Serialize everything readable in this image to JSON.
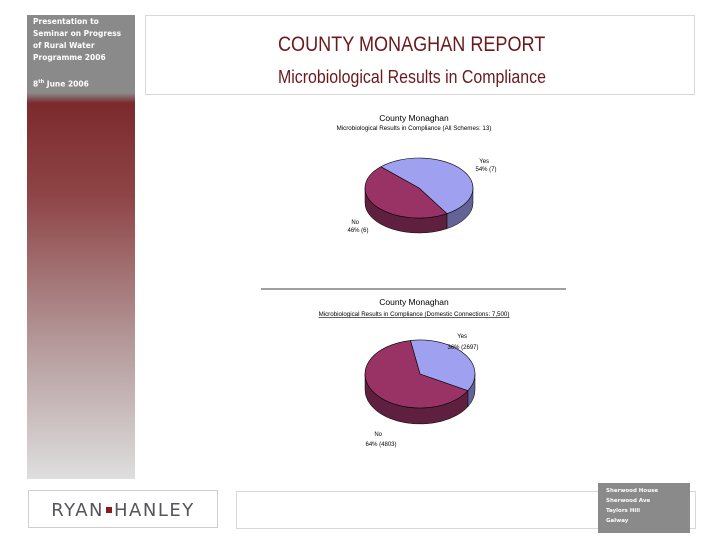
{
  "sidebar": {
    "title_lines": [
      "Presentation to",
      "Seminar on Progress",
      "of Rural Water",
      "Programme 2006"
    ],
    "date": "8th June 2006",
    "date_day": "8",
    "date_suffix": "th",
    "date_rest": " June 2006"
  },
  "header": {
    "title": "COUNTY MONAGHAN REPORT",
    "subtitle": "Microbiological Results in Compliance"
  },
  "logo": {
    "left": "RYAN",
    "right": "HANLEY"
  },
  "address": [
    "Sherwood House",
    "Sherwood Ave",
    "Taylors Hill",
    "Galway"
  ],
  "colors": {
    "yes": "#a0a0f0",
    "no": "#993366",
    "accent": "#6a1a1e"
  },
  "chart_data": [
    {
      "type": "pie",
      "title": "County Monaghan",
      "subtitle": "Microbiological Results in Compliance (All Schemes: 13)",
      "categories": [
        "Yes",
        "No"
      ],
      "values": [
        7,
        6
      ],
      "labels": [
        "Yes\n54% (7)",
        "No\n46% (6)"
      ],
      "label_lines": [
        [
          "Yes",
          "54% (7)"
        ],
        [
          "No",
          "46% (6)"
        ]
      ],
      "colors": [
        "#a0a0f0",
        "#993366"
      ]
    },
    {
      "type": "pie",
      "title": "County Monaghan",
      "subtitle": "Microbiological Results in Compliance (Domestic Connections: 7,500)",
      "categories": [
        "Yes",
        "No"
      ],
      "values": [
        2697,
        4803
      ],
      "labels": [
        "Yes\n36% (2697)",
        "No\n64% (4803)"
      ],
      "label_lines": [
        [
          "Yes",
          "36% (2697)"
        ],
        [
          "No",
          "64% (4803)"
        ]
      ],
      "colors": [
        "#a0a0f0",
        "#993366"
      ]
    }
  ]
}
